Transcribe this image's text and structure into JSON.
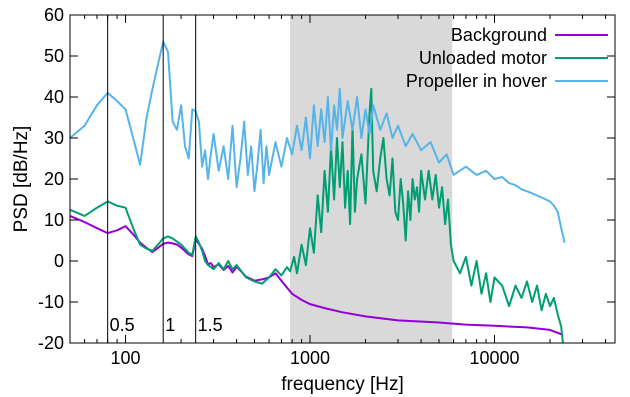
{
  "chart_data": {
    "type": "line",
    "xlabel": "frequency [Hz]",
    "ylabel": "PSD [dB/Hz]",
    "xscale": "log",
    "xlim": [
      50,
      45000
    ],
    "ylim": [
      -20,
      60
    ],
    "xticks": [
      {
        "v": 100,
        "label": "100"
      },
      {
        "v": 1000,
        "label": "1000"
      },
      {
        "v": 10000,
        "label": "10000"
      }
    ],
    "yticks": [
      -20,
      -10,
      0,
      10,
      20,
      30,
      40,
      50,
      60
    ],
    "grid": false,
    "legend_position": "top-right",
    "shaded_band": {
      "x_start": 780,
      "x_end": 5900,
      "color": "#d9d9d9"
    },
    "vlines": [
      {
        "x": 80,
        "label": "0.5"
      },
      {
        "x": 160,
        "label": "1"
      },
      {
        "x": 240,
        "label": "1.5"
      }
    ],
    "series": [
      {
        "name": "Background",
        "color": "#9400d3",
        "points": [
          [
            50,
            11
          ],
          [
            60,
            9.5
          ],
          [
            70,
            8
          ],
          [
            80,
            6.8
          ],
          [
            90,
            7.5
          ],
          [
            100,
            8.5
          ],
          [
            110,
            6.5
          ],
          [
            120,
            4.5
          ],
          [
            130,
            3.2
          ],
          [
            140,
            2.2
          ],
          [
            150,
            3.2
          ],
          [
            160,
            4.2
          ],
          [
            170,
            4.5
          ],
          [
            180,
            4.3
          ],
          [
            190,
            4
          ],
          [
            200,
            3.3
          ],
          [
            210,
            2.4
          ],
          [
            220,
            1.6
          ],
          [
            230,
            1.2
          ],
          [
            240,
            5.3
          ],
          [
            250,
            4.2
          ],
          [
            260,
            3
          ],
          [
            270,
            1.2
          ],
          [
            280,
            -0.8
          ],
          [
            290,
            -0.5
          ],
          [
            300,
            -1.5
          ],
          [
            320,
            -0.8
          ],
          [
            340,
            -2.2
          ],
          [
            360,
            -1.2
          ],
          [
            380,
            -2.8
          ],
          [
            400,
            -1.4
          ],
          [
            450,
            -3.8
          ],
          [
            500,
            -4.8
          ],
          [
            550,
            -4.5
          ],
          [
            600,
            -4
          ],
          [
            650,
            -3
          ],
          [
            700,
            -4.8
          ],
          [
            750,
            -6.5
          ],
          [
            800,
            -8
          ],
          [
            900,
            -9.5
          ],
          [
            1000,
            -10.5
          ],
          [
            1200,
            -11.5
          ],
          [
            1500,
            -12.5
          ],
          [
            2000,
            -13.5
          ],
          [
            3000,
            -14.5
          ],
          [
            5000,
            -15
          ],
          [
            7000,
            -15.5
          ],
          [
            10000,
            -15.8
          ],
          [
            15000,
            -16.2
          ],
          [
            20000,
            -16.8
          ],
          [
            23500,
            -18
          ]
        ]
      },
      {
        "name": "Unloaded motor",
        "color": "#009e73",
        "points": [
          [
            50,
            12.5
          ],
          [
            60,
            11
          ],
          [
            70,
            13
          ],
          [
            80,
            14.5
          ],
          [
            90,
            13.5
          ],
          [
            100,
            13
          ],
          [
            110,
            8
          ],
          [
            120,
            4
          ],
          [
            130,
            3
          ],
          [
            140,
            2.5
          ],
          [
            150,
            4
          ],
          [
            160,
            5.5
          ],
          [
            170,
            6
          ],
          [
            180,
            5.5
          ],
          [
            190,
            4.7
          ],
          [
            200,
            4
          ],
          [
            210,
            3
          ],
          [
            220,
            2
          ],
          [
            230,
            1.5
          ],
          [
            240,
            6
          ],
          [
            250,
            4.5
          ],
          [
            260,
            2.5
          ],
          [
            270,
            0
          ],
          [
            280,
            -1
          ],
          [
            300,
            -2
          ],
          [
            320,
            -0.5
          ],
          [
            340,
            -2
          ],
          [
            360,
            0
          ],
          [
            380,
            -2
          ],
          [
            400,
            -1
          ],
          [
            450,
            -4
          ],
          [
            500,
            -5
          ],
          [
            550,
            -5.5
          ],
          [
            600,
            -4
          ],
          [
            650,
            -2
          ],
          [
            700,
            -3.5
          ],
          [
            750,
            -1.5
          ],
          [
            780,
            -2.5
          ],
          [
            820,
            1
          ],
          [
            850,
            -3
          ],
          [
            900,
            4
          ],
          [
            950,
            -1
          ],
          [
            1000,
            8
          ],
          [
            1050,
            2
          ],
          [
            1100,
            16
          ],
          [
            1150,
            7
          ],
          [
            1200,
            22
          ],
          [
            1250,
            12
          ],
          [
            1300,
            28
          ],
          [
            1350,
            15
          ],
          [
            1400,
            30
          ],
          [
            1450,
            18
          ],
          [
            1500,
            29
          ],
          [
            1550,
            13
          ],
          [
            1600,
            22
          ],
          [
            1650,
            9
          ],
          [
            1700,
            33
          ],
          [
            1750,
            12
          ],
          [
            1800,
            20
          ],
          [
            1900,
            26
          ],
          [
            2000,
            14
          ],
          [
            2100,
            36
          ],
          [
            2150,
            42
          ],
          [
            2200,
            22
          ],
          [
            2300,
            17
          ],
          [
            2400,
            25
          ],
          [
            2500,
            30
          ],
          [
            2600,
            20
          ],
          [
            2700,
            16
          ],
          [
            2800,
            25
          ],
          [
            2900,
            12
          ],
          [
            3000,
            10
          ],
          [
            3100,
            20
          ],
          [
            3200,
            14
          ],
          [
            3300,
            5
          ],
          [
            3400,
            17
          ],
          [
            3500,
            10
          ],
          [
            3600,
            20
          ],
          [
            3700,
            15
          ],
          [
            3800,
            18
          ],
          [
            3900,
            12
          ],
          [
            4000,
            22
          ],
          [
            4200,
            15
          ],
          [
            4400,
            22
          ],
          [
            4600,
            15
          ],
          [
            4800,
            21
          ],
          [
            5000,
            13
          ],
          [
            5200,
            18
          ],
          [
            5400,
            9
          ],
          [
            5600,
            15
          ],
          [
            5800,
            4
          ],
          [
            6000,
            0
          ],
          [
            6500,
            -3
          ],
          [
            7000,
            1
          ],
          [
            7500,
            -6
          ],
          [
            8000,
            0
          ],
          [
            8500,
            -8
          ],
          [
            9000,
            -3
          ],
          [
            9500,
            -10
          ],
          [
            10000,
            -4
          ],
          [
            11000,
            -6
          ],
          [
            12000,
            -11
          ],
          [
            13000,
            -6
          ],
          [
            14000,
            -9
          ],
          [
            15000,
            -5
          ],
          [
            16000,
            -10
          ],
          [
            17000,
            -6
          ],
          [
            18000,
            -12
          ],
          [
            19000,
            -8
          ],
          [
            20000,
            -11
          ],
          [
            21000,
            -9
          ],
          [
            22000,
            -13
          ],
          [
            23000,
            -16
          ],
          [
            23500,
            -20
          ]
        ]
      },
      {
        "name": "Propeller in hover",
        "color": "#56b4e9",
        "points": [
          [
            50,
            30
          ],
          [
            60,
            33
          ],
          [
            70,
            38
          ],
          [
            80,
            41
          ],
          [
            90,
            39
          ],
          [
            100,
            37
          ],
          [
            110,
            30
          ],
          [
            120,
            23.5
          ],
          [
            130,
            35
          ],
          [
            140,
            42
          ],
          [
            150,
            48
          ],
          [
            160,
            53.5
          ],
          [
            170,
            51
          ],
          [
            180,
            34
          ],
          [
            190,
            32
          ],
          [
            200,
            38
          ],
          [
            210,
            28
          ],
          [
            220,
            25
          ],
          [
            230,
            37
          ],
          [
            240,
            36.5
          ],
          [
            250,
            34
          ],
          [
            260,
            23
          ],
          [
            270,
            27
          ],
          [
            280,
            20
          ],
          [
            290,
            26
          ],
          [
            300,
            31
          ],
          [
            320,
            22
          ],
          [
            340,
            28
          ],
          [
            360,
            20
          ],
          [
            380,
            33
          ],
          [
            400,
            18
          ],
          [
            420,
            25
          ],
          [
            440,
            34
          ],
          [
            460,
            21
          ],
          [
            480,
            28
          ],
          [
            500,
            17
          ],
          [
            520,
            24
          ],
          [
            540,
            32
          ],
          [
            560,
            19
          ],
          [
            580,
            28
          ],
          [
            600,
            21
          ],
          [
            650,
            29
          ],
          [
            700,
            23
          ],
          [
            750,
            30
          ],
          [
            800,
            26
          ],
          [
            850,
            33
          ],
          [
            900,
            27
          ],
          [
            950,
            35
          ],
          [
            1000,
            25
          ],
          [
            1050,
            38
          ],
          [
            1100,
            28
          ],
          [
            1150,
            37
          ],
          [
            1200,
            29
          ],
          [
            1250,
            40
          ],
          [
            1300,
            27
          ],
          [
            1350,
            38
          ],
          [
            1400,
            32
          ],
          [
            1450,
            42
          ],
          [
            1500,
            30
          ],
          [
            1600,
            39
          ],
          [
            1700,
            32
          ],
          [
            1800,
            40
          ],
          [
            1900,
            30
          ],
          [
            2000,
            37
          ],
          [
            2100,
            31
          ],
          [
            2200,
            38
          ],
          [
            2400,
            32
          ],
          [
            2600,
            36
          ],
          [
            2800,
            30
          ],
          [
            3000,
            33
          ],
          [
            3300,
            28
          ],
          [
            3600,
            31
          ],
          [
            4000,
            27
          ],
          [
            4500,
            29
          ],
          [
            5000,
            24
          ],
          [
            5500,
            26
          ],
          [
            6000,
            21
          ],
          [
            7000,
            23
          ],
          [
            8000,
            21
          ],
          [
            9000,
            22
          ],
          [
            10000,
            20
          ],
          [
            11000,
            20.5
          ],
          [
            12000,
            19
          ],
          [
            13000,
            18.5
          ],
          [
            14000,
            17.5
          ],
          [
            15000,
            17
          ],
          [
            16000,
            16.5
          ],
          [
            17000,
            16
          ],
          [
            18000,
            15.5
          ],
          [
            19000,
            15
          ],
          [
            20000,
            14.5
          ],
          [
            21000,
            13.5
          ],
          [
            22000,
            12
          ],
          [
            23000,
            8
          ],
          [
            24000,
            4.5
          ]
        ]
      }
    ]
  }
}
